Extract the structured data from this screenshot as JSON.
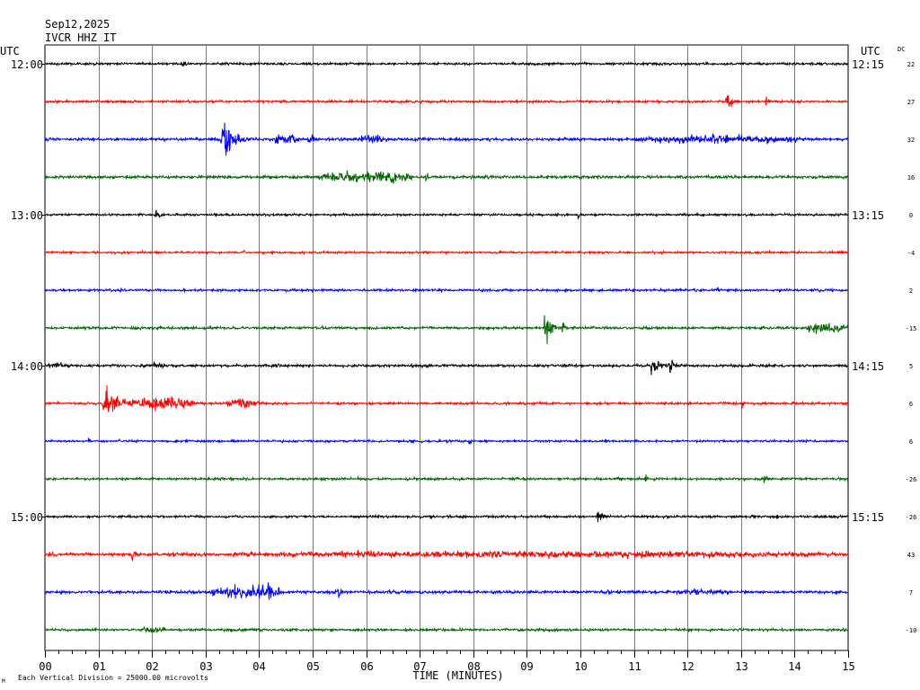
{
  "header": {
    "date": "Sep12,2025",
    "station": "IVCR HHZ IT"
  },
  "chart_data": {
    "type": "line",
    "title": "Sep12,2025",
    "subtitle": "IVCR HHZ IT",
    "left_axis_label": "UTC",
    "right_axis_label": "UTC",
    "dc_label": "DC",
    "xlabel": "TIME (MINUTES)",
    "x_ticks": [
      "00",
      "01",
      "02",
      "03",
      "04",
      "05",
      "06",
      "07",
      "08",
      "09",
      "10",
      "11",
      "12",
      "13",
      "14",
      "15"
    ],
    "xlim": [
      0,
      15
    ],
    "grid": true,
    "footer_note": "Each Vertical Division = 25000.00 microvolts",
    "corner_mark": "M",
    "colors": [
      "#000000",
      "#ff0000",
      "#0000ff",
      "#006400"
    ],
    "traces": [
      {
        "left_label": "12:00",
        "right_label": "12:15",
        "dc": "22",
        "color": "#000000"
      },
      {
        "left_label": "",
        "right_label": "",
        "dc": "27",
        "color": "#ff0000"
      },
      {
        "left_label": "",
        "right_label": "",
        "dc": "32",
        "color": "#0000ff"
      },
      {
        "left_label": "",
        "right_label": "",
        "dc": "16",
        "color": "#006400"
      },
      {
        "left_label": "13:00",
        "right_label": "13:15",
        "dc": "0",
        "color": "#000000"
      },
      {
        "left_label": "",
        "right_label": "",
        "dc": "-4",
        "color": "#ff0000"
      },
      {
        "left_label": "",
        "right_label": "",
        "dc": "2",
        "color": "#0000ff"
      },
      {
        "left_label": "",
        "right_label": "",
        "dc": "-15",
        "color": "#006400"
      },
      {
        "left_label": "14:00",
        "right_label": "14:15",
        "dc": "5",
        "color": "#000000"
      },
      {
        "left_label": "",
        "right_label": "",
        "dc": "6",
        "color": "#ff0000"
      },
      {
        "left_label": "",
        "right_label": "",
        "dc": "6",
        "color": "#0000ff"
      },
      {
        "left_label": "",
        "right_label": "",
        "dc": "-26",
        "color": "#006400"
      },
      {
        "left_label": "15:00",
        "right_label": "15:15",
        "dc": "-26",
        "color": "#000000"
      },
      {
        "left_label": "",
        "right_label": "",
        "dc": "43",
        "color": "#ff0000"
      },
      {
        "left_label": "",
        "right_label": "",
        "dc": "7",
        "color": "#0000ff"
      },
      {
        "left_label": "",
        "right_label": "",
        "dc": "-10",
        "color": "#006400"
      }
    ]
  }
}
